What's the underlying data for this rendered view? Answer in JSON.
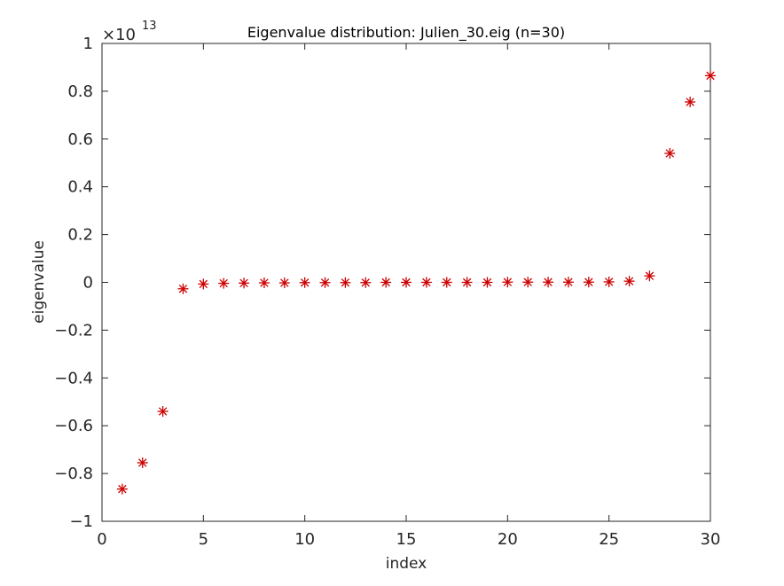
{
  "chart_data": {
    "type": "scatter",
    "title": "Eigenvalue distribution: Julien_30.eig (n=30)",
    "xlabel": "index",
    "ylabel": "eigenvalue",
    "xlim": [
      0,
      30
    ],
    "ylim": [
      -1,
      1
    ],
    "x_ticks": [
      "0",
      "5",
      "10",
      "15",
      "20",
      "25",
      "30"
    ],
    "y_ticks": [
      "−1",
      "−0.8",
      "−0.6",
      "−0.4",
      "−0.2",
      "0",
      "0.2",
      "0.4",
      "0.6",
      "0.8",
      "1"
    ],
    "y_exponent_base": "×10",
    "y_exponent_power": "13",
    "marker": "asterisk",
    "marker_color": "#cc0000",
    "grid": false,
    "series": [
      {
        "x": [
          1,
          2,
          3,
          4,
          5,
          6,
          7,
          8,
          9,
          10,
          11,
          12,
          13,
          14,
          15,
          16,
          17,
          18,
          19,
          20,
          21,
          22,
          23,
          24,
          25,
          26,
          27,
          28,
          29,
          30
        ],
        "values": [
          -0.865,
          -0.755,
          -0.54,
          -0.027,
          -0.007,
          -0.004,
          -0.003,
          -0.002,
          -0.002,
          -0.001,
          -0.001,
          -0.001,
          -0.001,
          0,
          0,
          0,
          0,
          0,
          0,
          0.001,
          0.001,
          0.001,
          0.001,
          0.001,
          0.002,
          0.005,
          0.027,
          0.54,
          0.755,
          0.865
        ]
      }
    ]
  }
}
